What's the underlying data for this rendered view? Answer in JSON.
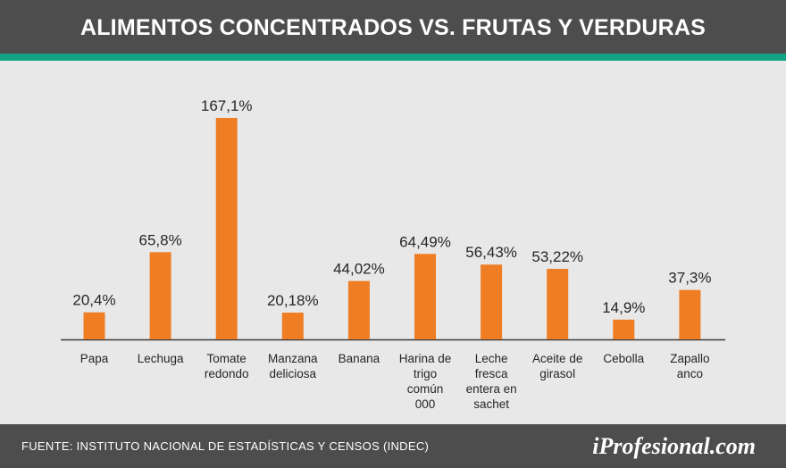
{
  "header": {
    "title": "ALIMENTOS CONCENTRADOS VS. FRUTAS Y VERDURAS"
  },
  "colors": {
    "bar": "#ee7d24",
    "header_bg": "#4d4d4d",
    "accent_rule": "#12a385",
    "plot_bg": "#e8e8e8",
    "text": "#262626"
  },
  "chart_data": {
    "type": "bar",
    "title": "ALIMENTOS CONCENTRADOS VS. FRUTAS Y VERDURAS",
    "categories": [
      "Papa",
      "Lechuga",
      "Tomate redondo",
      "Manzana deliciosa",
      "Banana",
      "Harina de trigo común 000",
      "Leche fresca entera en sachet",
      "Aceite de girasol",
      "Cebolla",
      "Zapallo anco"
    ],
    "category_lines": [
      [
        "Papa"
      ],
      [
        "Lechuga"
      ],
      [
        "Tomate",
        "redondo"
      ],
      [
        "Manzana",
        "deliciosa"
      ],
      [
        "Banana"
      ],
      [
        "Harina de",
        "trigo",
        "común",
        "000"
      ],
      [
        "Leche",
        "fresca",
        "entera en",
        "sachet"
      ],
      [
        "Aceite de",
        "girasol"
      ],
      [
        "Cebolla"
      ],
      [
        "Zapallo",
        "anco"
      ]
    ],
    "values": [
      20.4,
      65.8,
      167.1,
      20.18,
      44.02,
      64.49,
      56.43,
      53.22,
      14.9,
      37.3
    ],
    "labels": [
      "20,4%",
      "65,8%",
      "167,1%",
      "20,18%",
      "44,02%",
      "64,49%",
      "56,43%",
      "53,22%",
      "14,9%",
      "37,3%"
    ],
    "xlabel": "",
    "ylabel": "",
    "ylim": [
      0,
      167.1
    ],
    "grid": false,
    "legend": "none"
  },
  "footer": {
    "source": "FUENTE: INSTITUTO NACIONAL DE ESTADÍSTICAS Y CENSOS (INDEC)",
    "brand": "iProfesional.com"
  }
}
